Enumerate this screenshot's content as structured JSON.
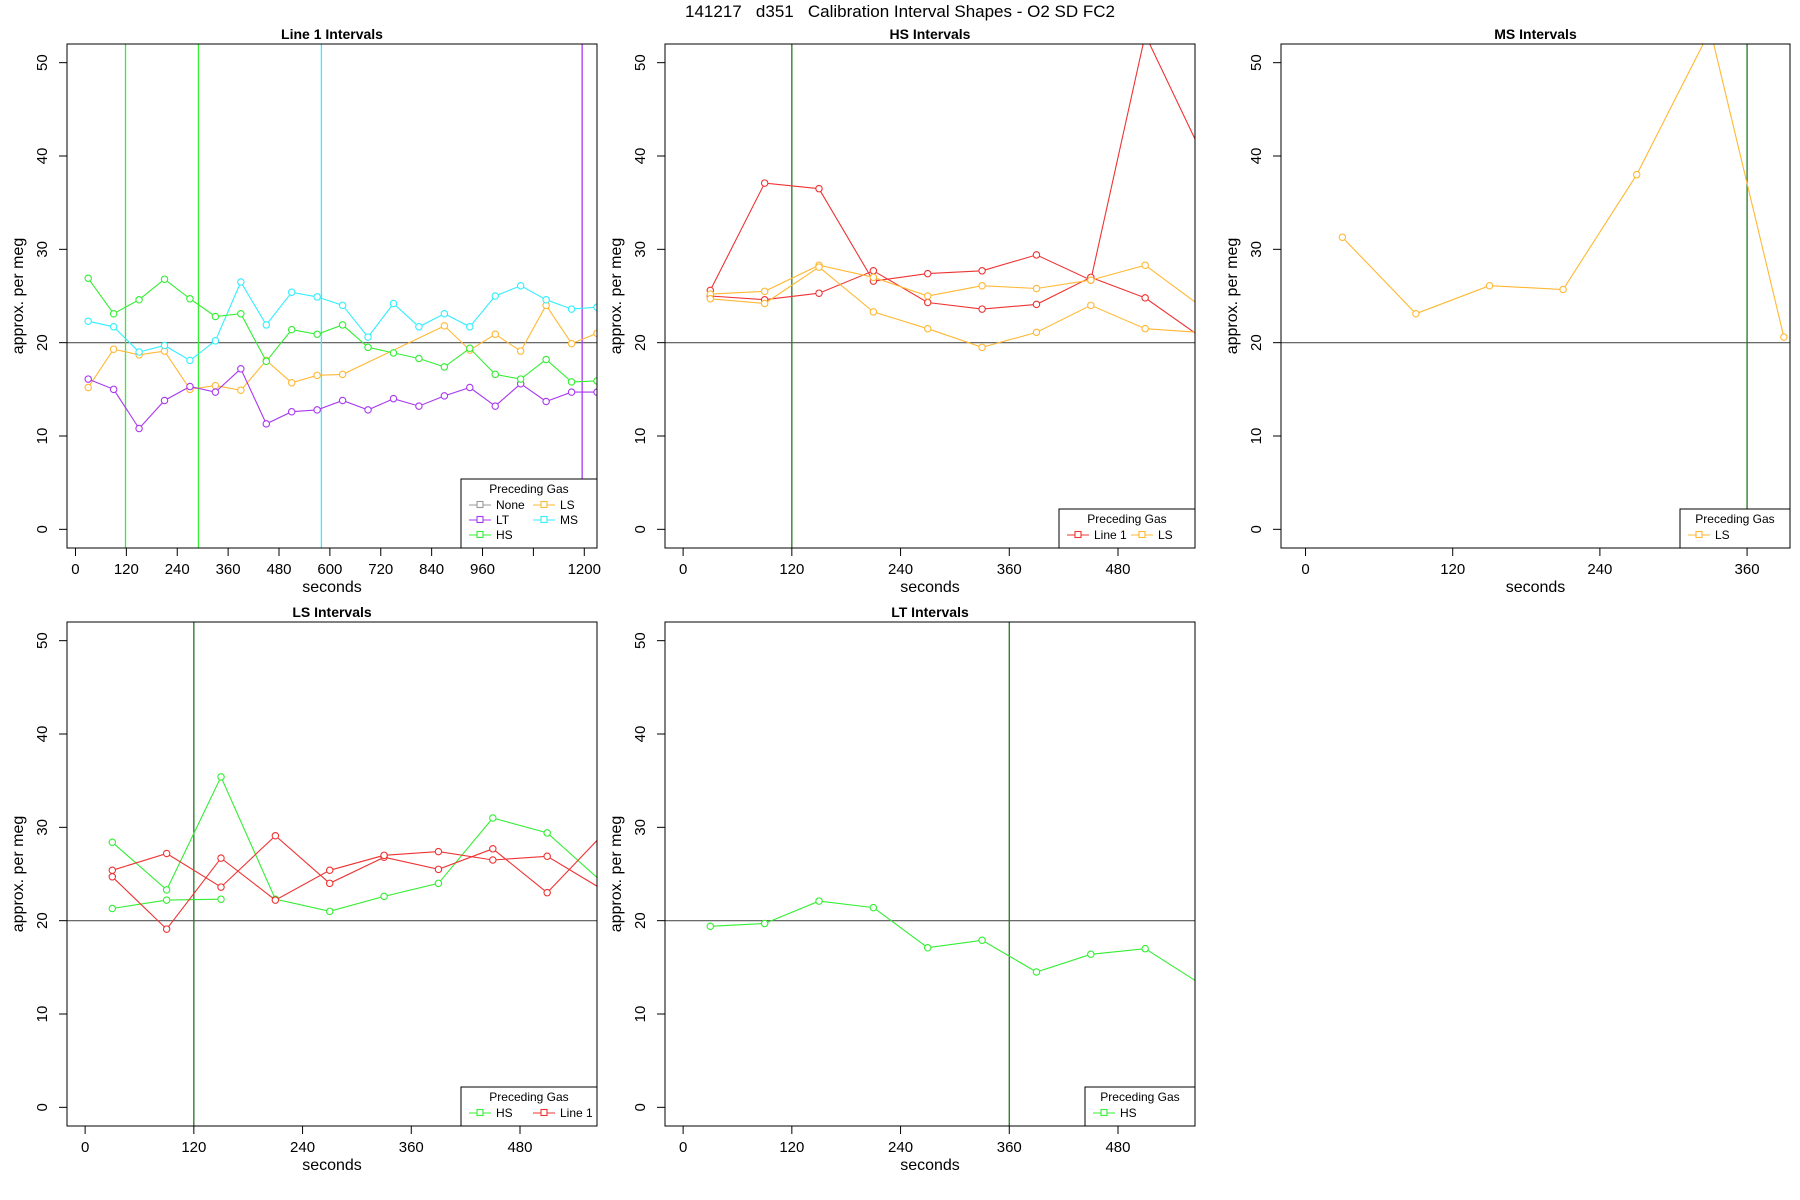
{
  "page": {
    "title": "141217   d351   Calibration Interval Shapes - O2 SD FC2"
  },
  "colors": {
    "None": "#999999",
    "LS": "#ffb833",
    "LT": "#a838f0",
    "MS": "#33eeff",
    "HS": "#33ee33",
    "Line 1": "#ee3333",
    "reference_line": "#555555",
    "vline_green": "#227722"
  },
  "chart_data": [
    {
      "type": "line",
      "title": "Line 1 Intervals",
      "xlabel": "seconds",
      "ylabel": "approx. per meg",
      "xlim": [
        -20,
        1230
      ],
      "ylim": [
        -2,
        52
      ],
      "xticks": [
        0,
        120,
        240,
        360,
        480,
        600,
        720,
        840,
        960,
        1080,
        1200
      ],
      "xtick_labels": [
        "0",
        "120",
        "240",
        "360",
        "480",
        "600",
        "720",
        "840",
        "960",
        "",
        "1200"
      ],
      "yticks": [
        0,
        10,
        20,
        30,
        40,
        50
      ],
      "hline": 20,
      "vlines": [
        {
          "x": 118,
          "color": "HS"
        },
        {
          "x": 290,
          "color": "HS"
        },
        {
          "x": 580,
          "color": "MS"
        },
        {
          "x": 1195,
          "color": "LT"
        }
      ],
      "legend": {
        "title": "Preceding Gas",
        "position": "bottom-right",
        "columns": 2,
        "entries": [
          "None",
          "LS",
          "LT",
          "MS",
          "HS"
        ]
      },
      "series": [
        {
          "name": "LS",
          "x": [
            30,
            90,
            150,
            210,
            270,
            330,
            390,
            450,
            510,
            570,
            630,
            870,
            930,
            990,
            1050,
            1110,
            1170,
            1230
          ],
          "y": [
            15.2,
            19.3,
            18.7,
            19.1,
            15.0,
            15.4,
            14.9,
            18.1,
            15.7,
            16.5,
            16.6,
            21.8,
            19.2,
            20.9,
            19.1,
            24.0,
            19.9,
            21.0
          ]
        },
        {
          "name": "LT",
          "x": [
            30,
            90,
            150,
            210,
            270,
            330,
            390,
            450,
            510,
            570,
            630,
            690,
            750,
            810,
            870,
            930,
            990,
            1050,
            1110,
            1170,
            1230
          ],
          "y": [
            16.1,
            15.0,
            10.8,
            13.8,
            15.3,
            14.7,
            17.2,
            11.3,
            12.6,
            12.8,
            13.8,
            12.8,
            14.0,
            13.2,
            14.3,
            15.2,
            13.2,
            15.6,
            13.7,
            14.7,
            14.7
          ]
        },
        {
          "name": "MS",
          "x": [
            30,
            90,
            150,
            210,
            270,
            330,
            390,
            450,
            510,
            570,
            630,
            690,
            750,
            810,
            870,
            930,
            990,
            1050,
            1110,
            1170,
            1230
          ],
          "y": [
            22.3,
            21.7,
            19.0,
            19.7,
            18.1,
            20.2,
            26.5,
            21.9,
            25.4,
            24.9,
            24.0,
            20.6,
            24.2,
            21.7,
            23.1,
            21.7,
            25.0,
            26.1,
            24.6,
            23.6,
            23.8
          ]
        },
        {
          "name": "HS",
          "x": [
            30,
            90,
            150,
            210,
            270,
            330,
            390,
            450,
            510,
            570,
            630,
            690,
            750,
            810,
            870,
            930,
            990,
            1050,
            1110,
            1170,
            1230
          ],
          "y": [
            26.9,
            23.1,
            24.6,
            26.8,
            24.7,
            22.8,
            23.1,
            18.0,
            21.4,
            20.9,
            21.9,
            19.5,
            18.9,
            18.3,
            17.4,
            19.4,
            16.6,
            16.1,
            18.2,
            15.8,
            15.9
          ]
        }
      ]
    },
    {
      "type": "line",
      "title": "HS Intervals",
      "xlabel": "seconds",
      "ylabel": "approx. per meg",
      "xlim": [
        -20,
        565
      ],
      "ylim": [
        -2,
        52
      ],
      "xticks": [
        0,
        120,
        240,
        360,
        480
      ],
      "xtick_labels": [
        "0",
        "120",
        "240",
        "360",
        "480"
      ],
      "yticks": [
        0,
        10,
        20,
        30,
        40,
        50
      ],
      "hline": 20,
      "vlines": [
        {
          "x": 120,
          "color": "vline_green"
        }
      ],
      "legend": {
        "title": "Preceding Gas",
        "position": "bottom-right",
        "columns": 2,
        "entries": [
          "Line 1",
          "LS"
        ]
      },
      "series": [
        {
          "name": "Line 1",
          "x": [
            30,
            90,
            150,
            210,
            270,
            330,
            390,
            450,
            510,
            570
          ],
          "y": [
            25.6,
            37.1,
            36.5,
            26.6,
            27.4,
            27.7,
            29.4,
            26.7,
            53.0,
            40.8
          ]
        },
        {
          "name": "Line 1",
          "x": [
            30,
            90,
            150,
            210,
            270,
            330,
            390,
            450,
            510,
            570
          ],
          "y": [
            25.0,
            24.6,
            25.3,
            27.7,
            24.3,
            23.6,
            24.1,
            27.0,
            24.8,
            20.7
          ]
        },
        {
          "name": "LS",
          "x": [
            30,
            90,
            150,
            210,
            270,
            330,
            390,
            450,
            510,
            570
          ],
          "y": [
            25.2,
            25.5,
            28.3,
            27.0,
            25.0,
            26.1,
            25.8,
            26.7,
            28.3,
            24.0
          ]
        },
        {
          "name": "LS",
          "x": [
            30,
            90,
            150,
            210,
            270,
            330,
            390,
            450,
            510,
            570
          ],
          "y": [
            24.7,
            24.2,
            28.1,
            23.3,
            21.5,
            19.5,
            21.1,
            24.0,
            21.5,
            21.1
          ]
        }
      ]
    },
    {
      "type": "line",
      "title": "MS Intervals",
      "xlabel": "seconds",
      "ylabel": "approx. per meg",
      "xlim": [
        -20,
        395
      ],
      "ylim": [
        -2,
        52
      ],
      "xticks": [
        0,
        120,
        240,
        360
      ],
      "xtick_labels": [
        "0",
        "120",
        "240",
        "360"
      ],
      "yticks": [
        0,
        10,
        20,
        30,
        40,
        50
      ],
      "hline": 20,
      "vlines": [
        {
          "x": 360,
          "color": "vline_green"
        }
      ],
      "legend": {
        "title": "Preceding Gas",
        "position": "bottom-right",
        "columns": 1,
        "entries": [
          "LS"
        ]
      },
      "series": [
        {
          "name": "LS",
          "x": [
            30,
            90,
            150,
            210,
            270,
            330,
            390
          ],
          "y": [
            31.3,
            23.1,
            26.1,
            25.7,
            38.0,
            53.5,
            20.6
          ]
        }
      ]
    },
    {
      "type": "line",
      "title": "LS Intervals",
      "xlabel": "seconds",
      "ylabel": "approx. per meg",
      "xlim": [
        -20,
        565
      ],
      "ylim": [
        -2,
        52
      ],
      "xticks": [
        0,
        120,
        240,
        360,
        480
      ],
      "xtick_labels": [
        "0",
        "120",
        "240",
        "360",
        "480"
      ],
      "yticks": [
        0,
        10,
        20,
        30,
        40,
        50
      ],
      "hline": 20,
      "vlines": [
        {
          "x": 120,
          "color": "vline_green"
        }
      ],
      "legend": {
        "title": "Preceding Gas",
        "position": "bottom-right",
        "columns": 2,
        "entries": [
          "HS",
          "Line 1"
        ]
      },
      "series": [
        {
          "name": "HS",
          "x": [
            30,
            90,
            150,
            210,
            270,
            330,
            390,
            450,
            510,
            570
          ],
          "y": [
            28.4,
            23.3,
            35.4,
            22.3,
            21.0,
            22.6,
            24.0,
            31.0,
            29.4,
            24.2
          ]
        },
        {
          "name": "HS",
          "x": [
            30,
            90,
            150
          ],
          "y": [
            21.3,
            22.2,
            22.3
          ]
        },
        {
          "name": "Line 1",
          "x": [
            30,
            90,
            150,
            210,
            270,
            330,
            390,
            450,
            510,
            570
          ],
          "y": [
            25.4,
            27.2,
            23.6,
            29.1,
            24.0,
            26.8,
            25.5,
            27.7,
            23.0,
            29.1
          ]
        },
        {
          "name": "Line 1",
          "x": [
            30,
            90,
            150,
            210,
            270,
            330,
            390,
            450,
            510,
            570
          ],
          "y": [
            24.7,
            19.1,
            26.7,
            22.2,
            25.4,
            27.0,
            27.4,
            26.5,
            26.9,
            23.4
          ]
        }
      ]
    },
    {
      "type": "line",
      "title": "LT Intervals",
      "xlabel": "seconds",
      "ylabel": "approx. per meg",
      "xlim": [
        -20,
        565
      ],
      "ylim": [
        -2,
        52
      ],
      "xticks": [
        0,
        120,
        240,
        360,
        480
      ],
      "xtick_labels": [
        "0",
        "120",
        "240",
        "360",
        "480"
      ],
      "yticks": [
        0,
        10,
        20,
        30,
        40,
        50
      ],
      "hline": 20,
      "vlines": [
        {
          "x": 360,
          "color": "vline_green"
        }
      ],
      "legend": {
        "title": "Preceding Gas",
        "position": "bottom-right",
        "columns": 1,
        "entries": [
          "HS"
        ]
      },
      "series": [
        {
          "name": "HS",
          "x": [
            30,
            90,
            150,
            210,
            270,
            330,
            390,
            450,
            510,
            570
          ],
          "y": [
            19.4,
            19.7,
            22.1,
            21.4,
            17.1,
            17.9,
            14.5,
            16.4,
            17.0,
            13.3
          ]
        }
      ]
    }
  ]
}
